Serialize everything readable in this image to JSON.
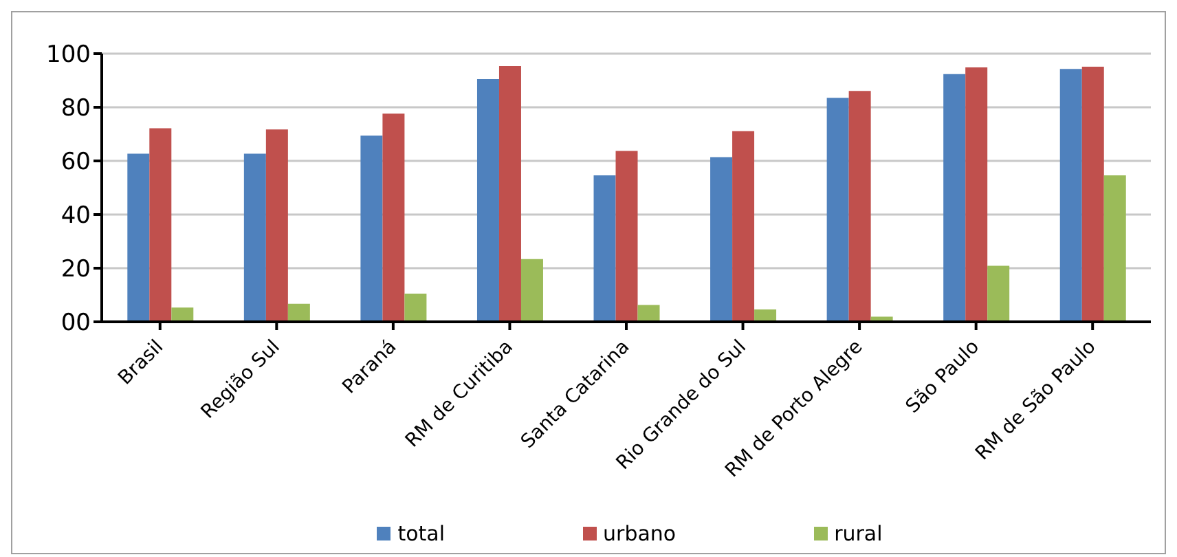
{
  "chart_data": {
    "type": "bar",
    "categories": [
      "Brasil",
      "Região Sul",
      "Paraná",
      "RM de Curitiba",
      "Santa Catarina",
      "Rio Grande do Sul",
      "RM de Porto Alegre",
      "São Paulo",
      "RM de São Paulo"
    ],
    "series": [
      {
        "name": "total",
        "color": "#4f81bd",
        "values": [
          62.7,
          62.7,
          69.4,
          90.5,
          54.6,
          61.4,
          83.5,
          92.4,
          94.3
        ]
      },
      {
        "name": "urbano",
        "color": "#c0504d",
        "values": [
          72.2,
          71.7,
          77.6,
          95.4,
          63.7,
          71.1,
          86.1,
          94.9,
          95.1
        ]
      },
      {
        "name": "rural",
        "color": "#9bbb59",
        "values": [
          5.3,
          6.7,
          10.5,
          23.4,
          6.3,
          4.6,
          1.9,
          20.9,
          54.6
        ]
      }
    ],
    "ylim": [
      0,
      100
    ],
    "yticks": [
      {
        "value": 0,
        "label": "00"
      },
      20,
      40,
      60,
      80,
      100
    ],
    "grid": "y",
    "legend": "bottom"
  }
}
